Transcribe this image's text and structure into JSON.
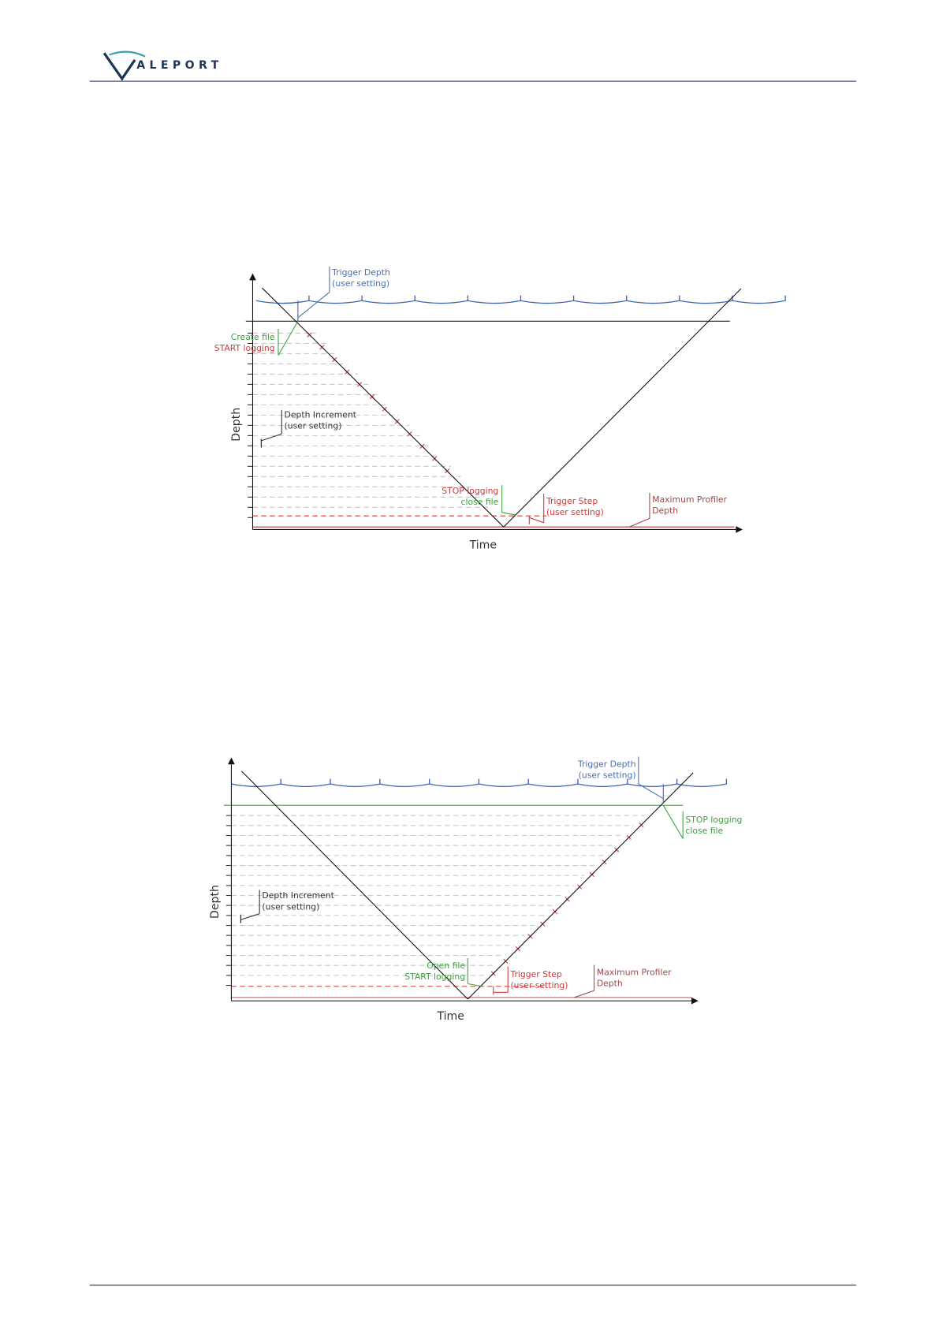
{
  "header": {
    "logo": "ALEPORT"
  },
  "diagrams": [
    {
      "trigger_depth": [
        "Trigger Depth",
        "(user setting)"
      ],
      "start": [
        "Create file",
        "START logging"
      ],
      "depth_increment": [
        "Depth Increment",
        "(user setting)"
      ],
      "stop": [
        "STOP logging",
        "close file"
      ],
      "trigger_step": [
        "Trigger Step",
        "(user setting)"
      ],
      "max_depth": [
        "Maximum Profiler",
        "Depth"
      ],
      "y_axis": "Depth",
      "x_axis": "Time"
    },
    {
      "trigger_depth": [
        "Trigger Depth",
        "(user setting)"
      ],
      "stop": [
        "STOP logging",
        "close file"
      ],
      "depth_increment": [
        "Depth Increment",
        "(user setting)"
      ],
      "start": [
        "Open file",
        "START logging"
      ],
      "trigger_step": [
        "Trigger Step",
        "(user setting)"
      ],
      "max_depth": [
        "Maximum Profiler",
        "Depth"
      ],
      "y_axis": "Depth",
      "x_axis": "Time"
    }
  ]
}
